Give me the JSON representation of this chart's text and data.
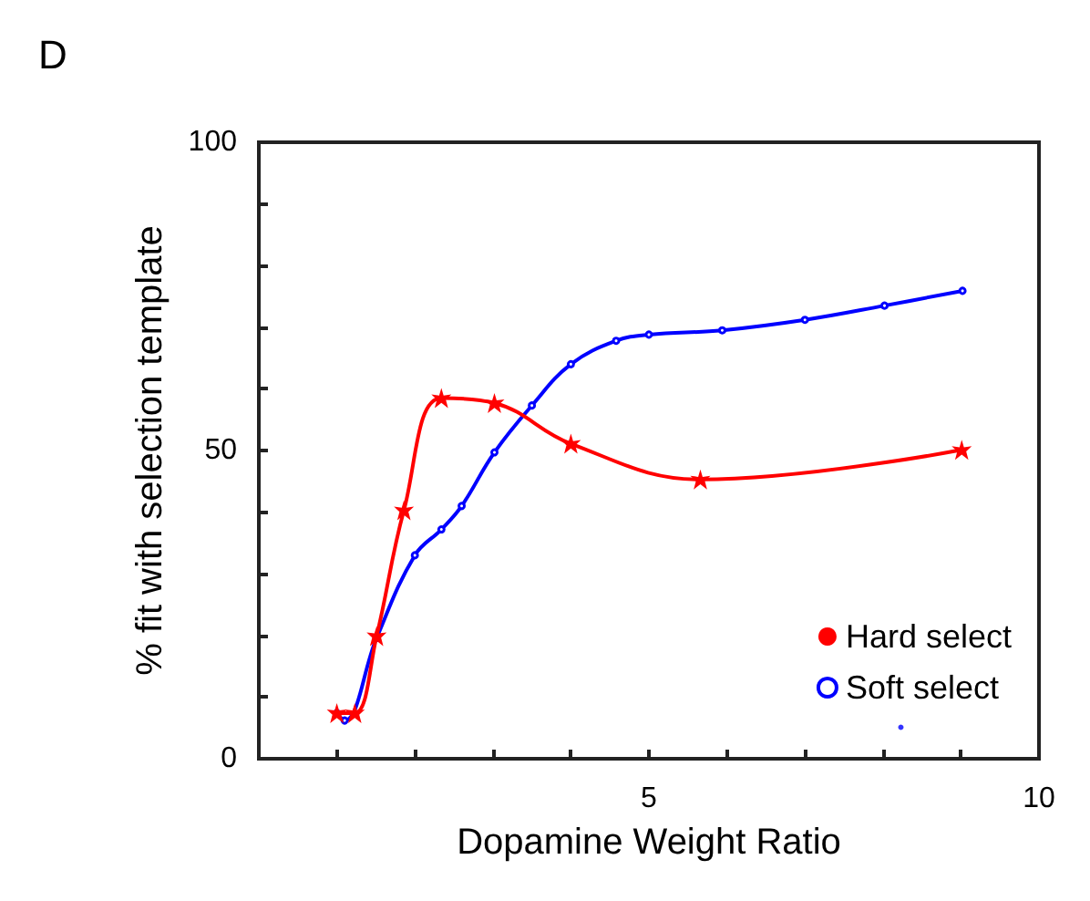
{
  "chart_data": {
    "type": "line",
    "title": "D",
    "xlabel": "Dopamine Weight Ratio",
    "ylabel": "% fit with selection template",
    "xlim": [
      0,
      10
    ],
    "ylim": [
      0,
      100
    ],
    "xticks": [
      {
        "value": 0,
        "label": null
      },
      {
        "value": 1,
        "label": null
      },
      {
        "value": 2,
        "label": null
      },
      {
        "value": 3,
        "label": null
      },
      {
        "value": 4,
        "label": null
      },
      5,
      {
        "value": 6,
        "label": null
      },
      {
        "value": 7,
        "label": null
      },
      {
        "value": 8,
        "label": null
      },
      {
        "value": 9,
        "label": null
      },
      10
    ],
    "yticks": [
      0,
      {
        "value": 10,
        "label": null
      },
      {
        "value": 20,
        "label": null
      },
      {
        "value": 30,
        "label": null
      },
      {
        "value": 40,
        "label": null
      },
      50,
      {
        "value": 60,
        "label": null
      },
      {
        "value": 70,
        "label": null
      },
      {
        "value": 80,
        "label": null
      },
      {
        "value": 90,
        "label": null
      },
      100
    ],
    "legend": "bottom right",
    "grid": false,
    "series": [
      {
        "name": "Hard select",
        "color": "#ff0000",
        "marker": "star",
        "x": [
          1.0,
          1.23,
          1.51,
          1.86,
          2.34,
          3.02,
          4.0,
          5.66,
          9.01
        ],
        "values": [
          7.4,
          7.4,
          19.9,
          40.3,
          58.5,
          57.7,
          51.1,
          45.3,
          50.1
        ]
      },
      {
        "name": "Soft select",
        "color": "#0000ff",
        "marker": "circle",
        "x": [
          1.0,
          1.1,
          1.51,
          2.0,
          2.34,
          2.6,
          3.02,
          3.5,
          4.0,
          4.58,
          5.0,
          5.94,
          7.0,
          8.02,
          9.02
        ],
        "values": [
          7.4,
          6.2,
          19.6,
          33,
          37.2,
          41,
          49.7,
          57.3,
          64,
          67.8,
          68.8,
          69.5,
          71.2,
          73.5,
          75.9
        ]
      },
      {
        "type": "scatter",
        "color": "#0000ff",
        "marker": "circle",
        "x": [
          8.23
        ],
        "values": [
          5.1
        ]
      }
    ]
  }
}
